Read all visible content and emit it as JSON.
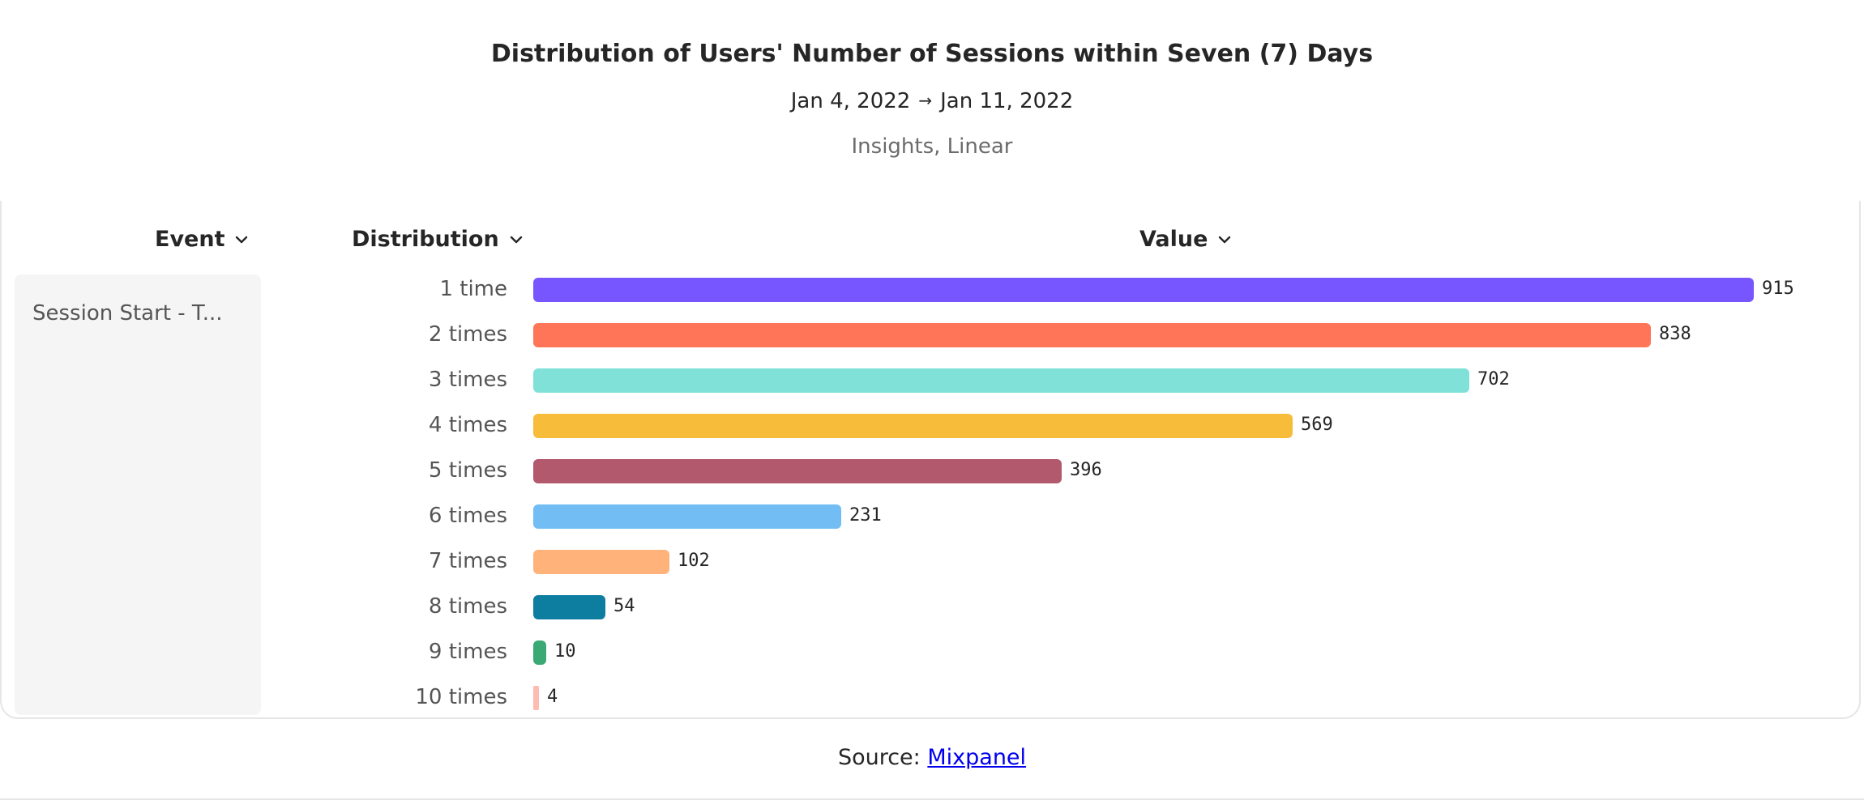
{
  "header": {
    "title": "Distribution of Users' Number of Sessions within Seven (7) Days",
    "date_start": "Jan 4, 2022",
    "date_arrow": "→",
    "date_end": "Jan 11, 2022",
    "subtitle": "Insights, Linear"
  },
  "columns": {
    "event": "Event",
    "distribution": "Distribution",
    "value": "Value"
  },
  "event_name": "Session Start - T...",
  "footer": {
    "source_prefix": "Source: ",
    "source_link": "Mixpanel"
  },
  "chart_data": {
    "type": "bar",
    "orientation": "horizontal",
    "categories": [
      "1 time",
      "2 times",
      "3 times",
      "4 times",
      "5 times",
      "6 times",
      "7 times",
      "8 times",
      "9 times",
      "10 times"
    ],
    "values": [
      915,
      838,
      702,
      569,
      396,
      231,
      102,
      54,
      10,
      4
    ],
    "colors": [
      "#7856ff",
      "#ff7557",
      "#80e1d9",
      "#f8bc3b",
      "#b2596e",
      "#72bef4",
      "#ffb27a",
      "#0d7ea0",
      "#3ba974",
      "#febbb2"
    ],
    "title": "Distribution of Users' Number of Sessions within Seven (7) Days",
    "xlabel": "Value",
    "ylabel": "Distribution",
    "xlim": [
      0,
      915
    ],
    "grid": false,
    "legend": "none"
  }
}
